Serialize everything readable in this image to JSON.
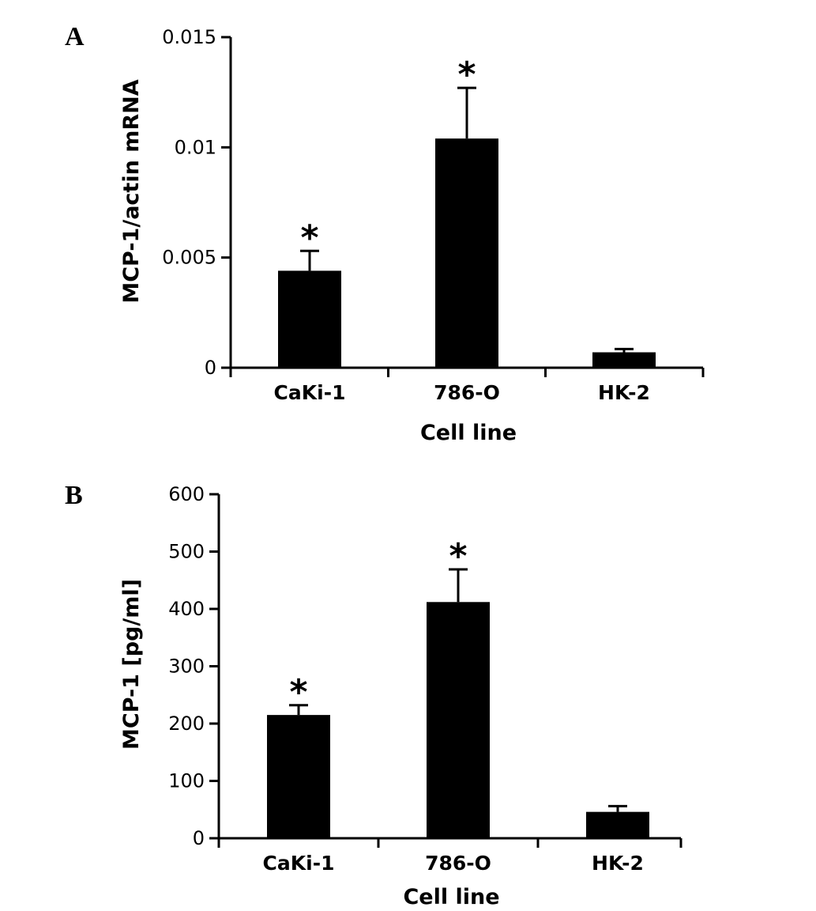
{
  "chart_data": [
    {
      "panel": "A",
      "type": "bar",
      "categories": [
        "CaKi-1",
        "786-O",
        "HK-2"
      ],
      "values": [
        0.0044,
        0.0104,
        0.0007
      ],
      "errors": [
        0.0009,
        0.0023,
        0.00015
      ],
      "significance": [
        "*",
        "*",
        ""
      ],
      "xlabel": "Cell line",
      "ylabel": "MCP-1/actin mRNA",
      "ylim": [
        0,
        0.015
      ],
      "yticks": [
        0,
        0.005,
        0.01,
        0.015
      ],
      "ytick_labels": [
        "0",
        "0.005",
        "0.01",
        "0.015"
      ],
      "bar_color": "#000000"
    },
    {
      "panel": "B",
      "type": "bar",
      "categories": [
        "CaKi-1",
        "786-O",
        "HK-2"
      ],
      "values": [
        215,
        412,
        46
      ],
      "errors": [
        17,
        57,
        10
      ],
      "significance": [
        "*",
        "*",
        ""
      ],
      "xlabel": "Cell line",
      "ylabel": "MCP-1 [pg/ml]",
      "ylim": [
        0,
        600
      ],
      "yticks": [
        0,
        100,
        200,
        300,
        400,
        500,
        600
      ],
      "ytick_labels": [
        "0",
        "100",
        "200",
        "300",
        "400",
        "500",
        "600"
      ],
      "bar_color": "#000000"
    }
  ]
}
